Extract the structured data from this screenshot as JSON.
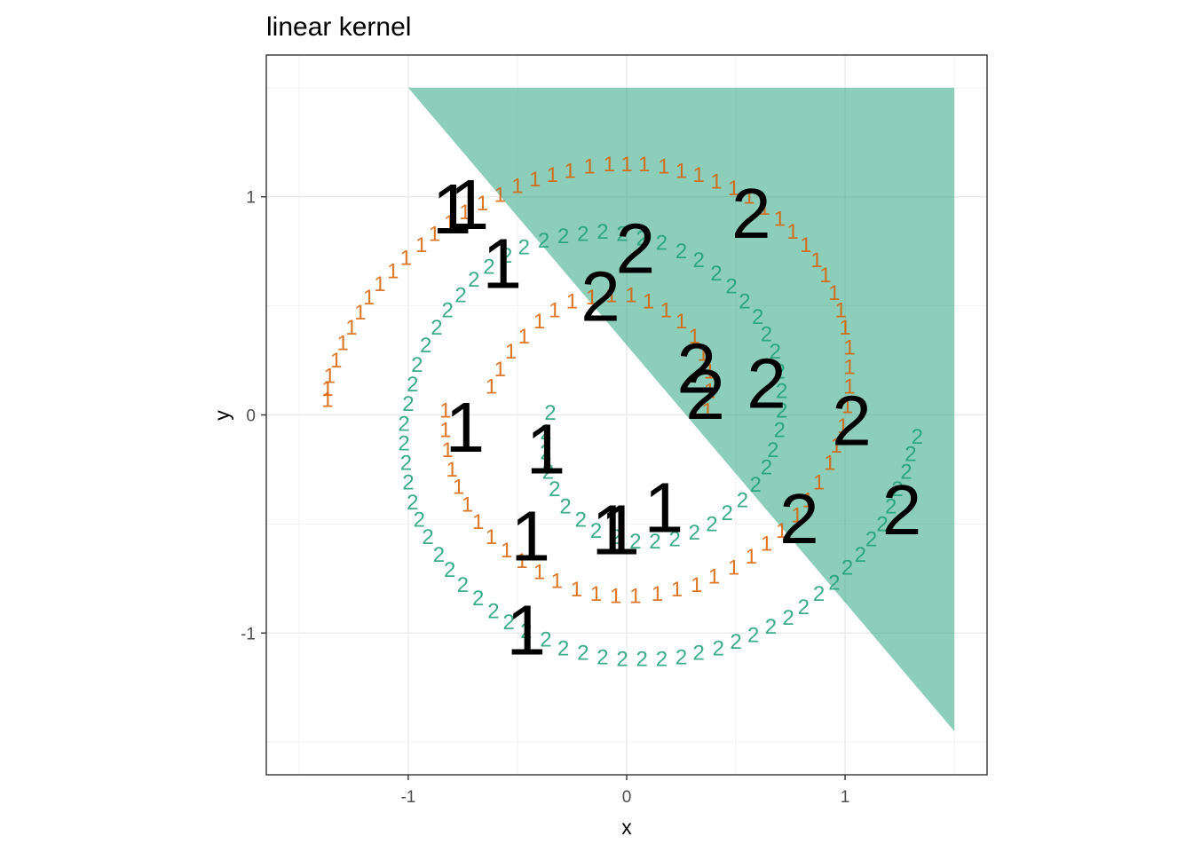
{
  "chart_data": {
    "type": "scatter",
    "title": "linear kernel",
    "xlabel": "x",
    "ylabel": "y",
    "xlim": [
      -1.65,
      1.65
    ],
    "ylim": [
      -1.65,
      1.65
    ],
    "x_ticks": [
      -1,
      0,
      1
    ],
    "x_tick_labels": [
      "-1",
      "0",
      "1"
    ],
    "y_ticks": [
      -1,
      0,
      1
    ],
    "y_tick_labels": [
      "-1",
      "0",
      "1"
    ],
    "grid": true,
    "colors": {
      "class_1": "#d95f02",
      "class_2": "#1b9e77",
      "region_2": "#1b9e77",
      "support_vectors": "#000000"
    },
    "decision_region": {
      "label": "2",
      "polygon": [
        [
          -1.0,
          1.5
        ],
        [
          1.5,
          1.5
        ],
        [
          1.5,
          -1.45
        ]
      ]
    },
    "classes": [
      "1",
      "2"
    ],
    "spiral_samples": {
      "class_1_outer": [
        [
          -1.37,
          0.07
        ],
        [
          -1.37,
          0.12
        ],
        [
          -1.36,
          0.18
        ],
        [
          -1.33,
          0.25
        ],
        [
          -1.3,
          0.33
        ],
        [
          -1.26,
          0.4
        ],
        [
          -1.22,
          0.47
        ],
        [
          -1.18,
          0.54
        ],
        [
          -1.13,
          0.6
        ],
        [
          -1.07,
          0.66
        ],
        [
          -1.01,
          0.72
        ],
        [
          -0.94,
          0.78
        ],
        [
          -0.88,
          0.83
        ],
        [
          -0.81,
          0.88
        ],
        [
          -0.74,
          0.93
        ],
        [
          -0.66,
          0.97
        ],
        [
          -0.58,
          1.01
        ],
        [
          -0.5,
          1.05
        ],
        [
          -0.42,
          1.08
        ],
        [
          -0.34,
          1.1
        ],
        [
          -0.26,
          1.12
        ],
        [
          -0.17,
          1.14
        ],
        [
          -0.08,
          1.15
        ],
        [
          0.0,
          1.15
        ],
        [
          0.08,
          1.15
        ],
        [
          0.17,
          1.14
        ],
        [
          0.25,
          1.12
        ],
        [
          0.33,
          1.1
        ],
        [
          0.41,
          1.07
        ],
        [
          0.49,
          1.04
        ],
        [
          0.56,
          1.0
        ],
        [
          0.63,
          0.95
        ],
        [
          0.7,
          0.9
        ],
        [
          0.76,
          0.84
        ],
        [
          0.82,
          0.78
        ],
        [
          0.87,
          0.71
        ],
        [
          0.91,
          0.64
        ],
        [
          0.95,
          0.56
        ],
        [
          0.98,
          0.48
        ],
        [
          1.0,
          0.4
        ],
        [
          1.02,
          0.31
        ],
        [
          1.02,
          0.22
        ],
        [
          1.02,
          0.13
        ],
        [
          1.01,
          0.04
        ],
        [
          0.99,
          -0.05
        ],
        [
          0.96,
          -0.14
        ],
        [
          0.93,
          -0.22
        ],
        [
          0.88,
          -0.31
        ],
        [
          0.83,
          -0.39
        ],
        [
          0.78,
          -0.46
        ],
        [
          0.71,
          -0.53
        ],
        [
          0.64,
          -0.59
        ],
        [
          0.57,
          -0.65
        ],
        [
          0.49,
          -0.7
        ],
        [
          0.4,
          -0.74
        ],
        [
          0.32,
          -0.78
        ],
        [
          0.23,
          -0.8
        ],
        [
          0.14,
          -0.82
        ],
        [
          0.04,
          -0.83
        ],
        [
          -0.05,
          -0.83
        ],
        [
          -0.14,
          -0.82
        ],
        [
          -0.23,
          -0.8
        ],
        [
          -0.32,
          -0.76
        ],
        [
          -0.4,
          -0.72
        ],
        [
          -0.48,
          -0.67
        ],
        [
          -0.55,
          -0.62
        ],
        [
          -0.62,
          -0.56
        ],
        [
          -0.68,
          -0.49
        ],
        [
          -0.73,
          -0.41
        ],
        [
          -0.77,
          -0.33
        ],
        [
          -0.8,
          -0.25
        ],
        [
          -0.82,
          -0.16
        ],
        [
          -0.83,
          -0.07
        ],
        [
          -0.83,
          0.02
        ]
      ],
      "class_1_inner": [
        [
          -0.62,
          0.13
        ],
        [
          -0.58,
          0.21
        ],
        [
          -0.53,
          0.29
        ],
        [
          -0.47,
          0.36
        ],
        [
          -0.4,
          0.43
        ],
        [
          -0.33,
          0.48
        ],
        [
          -0.25,
          0.52
        ],
        [
          -0.16,
          0.54
        ],
        [
          -0.07,
          0.55
        ],
        [
          0.02,
          0.55
        ],
        [
          0.1,
          0.52
        ],
        [
          0.18,
          0.48
        ],
        [
          0.25,
          0.43
        ],
        [
          0.31,
          0.36
        ],
        [
          0.35,
          0.28
        ],
        [
          0.38,
          0.2
        ],
        [
          0.38,
          0.11
        ],
        [
          0.37,
          0.02
        ]
      ],
      "class_2_outer": [
        [
          1.33,
          -0.1
        ],
        [
          1.3,
          -0.18
        ],
        [
          1.28,
          -0.26
        ],
        [
          1.24,
          -0.34
        ],
        [
          1.21,
          -0.42
        ],
        [
          1.17,
          -0.5
        ],
        [
          1.12,
          -0.57
        ],
        [
          1.07,
          -0.64
        ],
        [
          1.01,
          -0.7
        ],
        [
          0.95,
          -0.77
        ],
        [
          0.88,
          -0.82
        ],
        [
          0.81,
          -0.88
        ],
        [
          0.74,
          -0.93
        ],
        [
          0.66,
          -0.97
        ],
        [
          0.58,
          -1.01
        ],
        [
          0.5,
          -1.04
        ],
        [
          0.42,
          -1.07
        ],
        [
          0.33,
          -1.09
        ],
        [
          0.25,
          -1.11
        ],
        [
          0.16,
          -1.12
        ],
        [
          0.07,
          -1.12
        ],
        [
          -0.02,
          -1.12
        ],
        [
          -0.11,
          -1.11
        ],
        [
          -0.2,
          -1.09
        ],
        [
          -0.29,
          -1.07
        ],
        [
          -0.37,
          -1.03
        ],
        [
          -0.46,
          -0.99
        ],
        [
          -0.54,
          -0.95
        ],
        [
          -0.61,
          -0.9
        ],
        [
          -0.68,
          -0.84
        ],
        [
          -0.75,
          -0.78
        ],
        [
          -0.81,
          -0.71
        ],
        [
          -0.86,
          -0.64
        ],
        [
          -0.91,
          -0.56
        ],
        [
          -0.95,
          -0.48
        ],
        [
          -0.98,
          -0.4
        ],
        [
          -1.0,
          -0.31
        ],
        [
          -1.01,
          -0.22
        ],
        [
          -1.02,
          -0.13
        ],
        [
          -1.02,
          -0.04
        ],
        [
          -1.0,
          0.05
        ],
        [
          -0.98,
          0.14
        ],
        [
          -0.96,
          0.23
        ],
        [
          -0.92,
          0.32
        ],
        [
          -0.87,
          0.4
        ],
        [
          -0.82,
          0.48
        ],
        [
          -0.76,
          0.55
        ],
        [
          -0.7,
          0.62
        ],
        [
          -0.63,
          0.68
        ],
        [
          -0.55,
          0.73
        ],
        [
          -0.47,
          0.77
        ],
        [
          -0.38,
          0.8
        ],
        [
          -0.29,
          0.82
        ],
        [
          -0.2,
          0.83
        ],
        [
          -0.11,
          0.84
        ],
        [
          -0.02,
          0.83
        ],
        [
          0.07,
          0.81
        ],
        [
          0.16,
          0.79
        ],
        [
          0.25,
          0.75
        ],
        [
          0.33,
          0.71
        ],
        [
          0.41,
          0.65
        ],
        [
          0.48,
          0.59
        ],
        [
          0.54,
          0.52
        ],
        [
          0.6,
          0.45
        ],
        [
          0.64,
          0.37
        ],
        [
          0.68,
          0.29
        ],
        [
          0.7,
          0.2
        ],
        [
          0.71,
          0.11
        ],
        [
          0.71,
          0.02
        ],
        [
          0.7,
          -0.07
        ],
        [
          0.67,
          -0.16
        ],
        [
          0.64,
          -0.24
        ],
        [
          0.59,
          -0.32
        ],
        [
          0.53,
          -0.39
        ],
        [
          0.46,
          -0.45
        ],
        [
          0.39,
          -0.5
        ],
        [
          0.31,
          -0.54
        ],
        [
          0.22,
          -0.57
        ],
        [
          0.13,
          -0.58
        ],
        [
          0.04,
          -0.58
        ],
        [
          -0.05,
          -0.56
        ],
        [
          -0.14,
          -0.53
        ],
        [
          -0.21,
          -0.48
        ],
        [
          -0.28,
          -0.42
        ],
        [
          -0.33,
          -0.34
        ],
        [
          -0.36,
          -0.26
        ],
        [
          -0.37,
          -0.17
        ],
        [
          -0.37,
          -0.08
        ],
        [
          -0.35,
          0.01
        ]
      ]
    },
    "support_vectors": [
      {
        "x": -0.8,
        "y": 0.95,
        "label": "1"
      },
      {
        "x": -0.72,
        "y": 0.97,
        "label": "1"
      },
      {
        "x": -0.57,
        "y": 0.7,
        "label": "1"
      },
      {
        "x": -0.74,
        "y": -0.05,
        "label": "1"
      },
      {
        "x": -0.37,
        "y": -0.15,
        "label": "1"
      },
      {
        "x": -0.44,
        "y": -0.55,
        "label": "1"
      },
      {
        "x": -0.46,
        "y": -0.98,
        "label": "1"
      },
      {
        "x": -0.07,
        "y": -0.52,
        "label": "1"
      },
      {
        "x": -0.03,
        "y": -0.52,
        "label": "1"
      },
      {
        "x": 0.17,
        "y": -0.42,
        "label": "1"
      },
      {
        "x": 0.04,
        "y": 0.77,
        "label": "2"
      },
      {
        "x": -0.12,
        "y": 0.55,
        "label": "2"
      },
      {
        "x": 0.57,
        "y": 0.93,
        "label": "2"
      },
      {
        "x": 0.32,
        "y": 0.22,
        "label": "2"
      },
      {
        "x": 0.36,
        "y": 0.1,
        "label": "2"
      },
      {
        "x": 0.64,
        "y": 0.15,
        "label": "2"
      },
      {
        "x": 1.03,
        "y": -0.02,
        "label": "2"
      },
      {
        "x": 0.79,
        "y": -0.47,
        "label": "2"
      },
      {
        "x": 1.26,
        "y": -0.43,
        "label": "2"
      }
    ]
  }
}
